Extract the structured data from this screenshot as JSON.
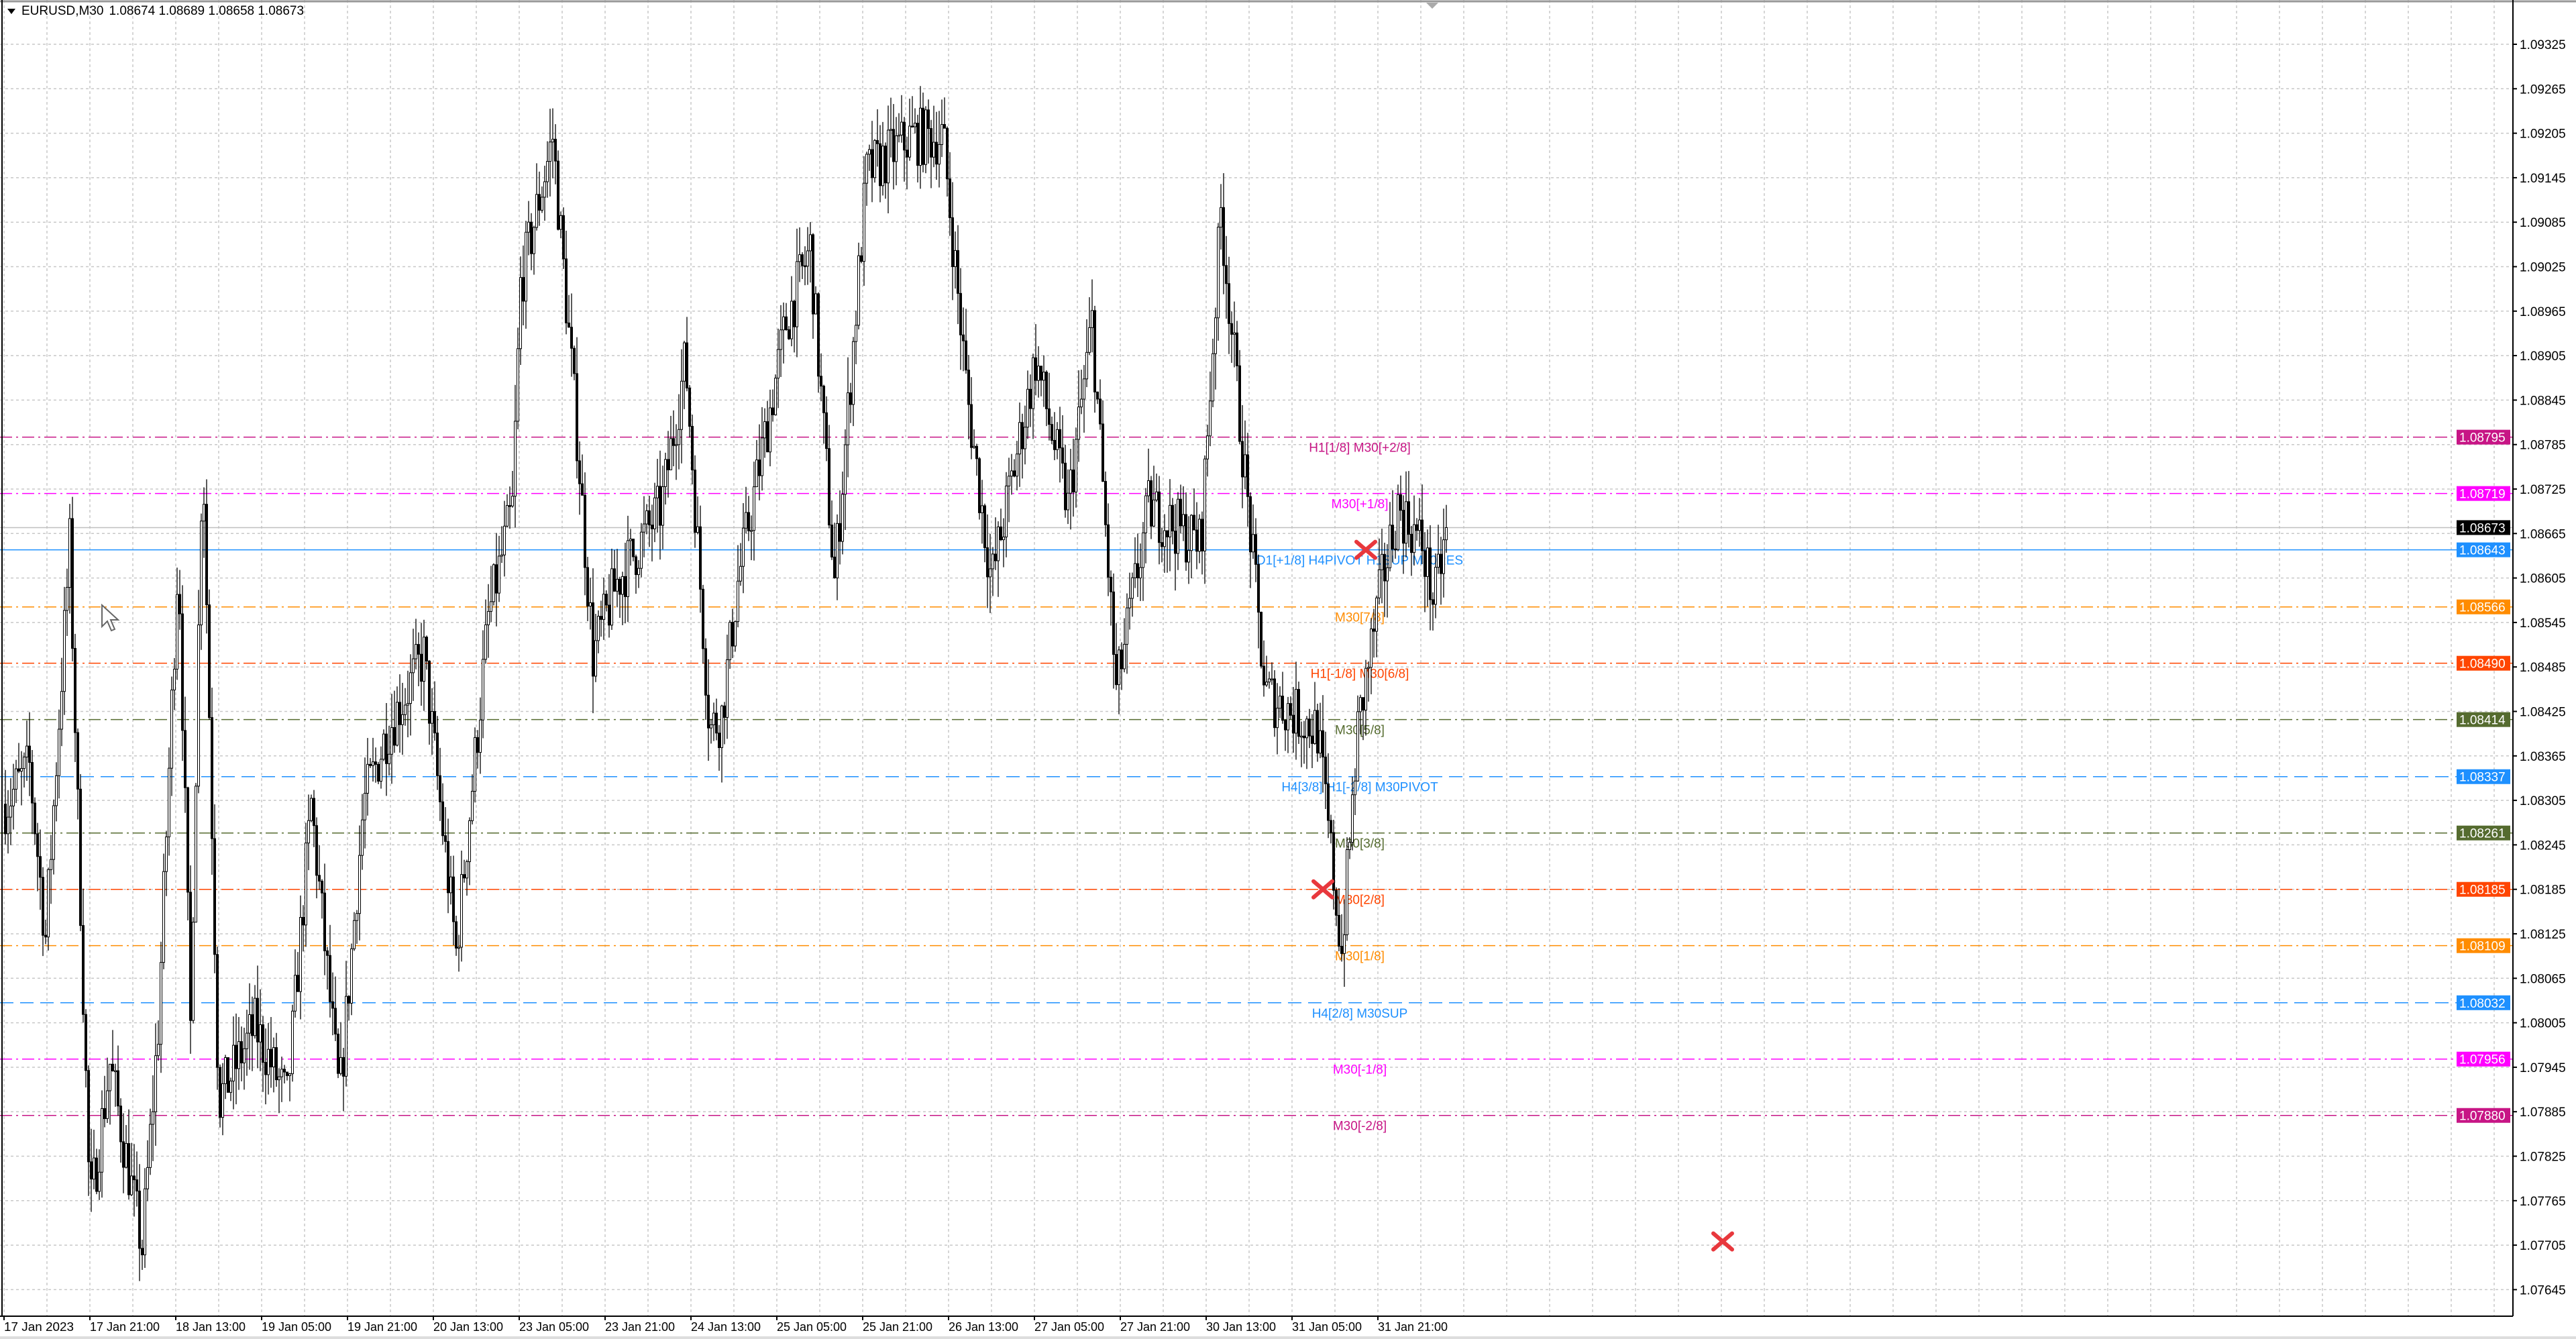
{
  "header": {
    "symbol": "EURUSD,M30",
    "ohlc": "1.08674 1.08689 1.08658 1.08673",
    "menu_icon": "triangle-down-icon"
  },
  "price_axis": {
    "ticks": [
      "1.09325",
      "1.09265",
      "1.09205",
      "1.09145",
      "1.09085",
      "1.09025",
      "1.08965",
      "1.08905",
      "1.08845",
      "1.08785",
      "1.08725",
      "1.08665",
      "1.08605",
      "1.08545",
      "1.08485",
      "1.08425",
      "1.08365",
      "1.08305",
      "1.08245",
      "1.08185",
      "1.08125",
      "1.08065",
      "1.08005",
      "1.07945",
      "1.07885",
      "1.07825",
      "1.07765",
      "1.07705",
      "1.07645"
    ],
    "current_price": {
      "value": "1.08673",
      "color": "#000000"
    }
  },
  "time_axis": {
    "ticks": [
      "17 Jan 2023",
      "17 Jan 21:00",
      "18 Jan 13:00",
      "19 Jan 05:00",
      "19 Jan 21:00",
      "20 Jan 13:00",
      "23 Jan 05:00",
      "23 Jan 21:00",
      "24 Jan 13:00",
      "25 Jan 05:00",
      "25 Jan 21:00",
      "26 Jan 13:00",
      "27 Jan 05:00",
      "27 Jan 21:00",
      "30 Jan 13:00",
      "31 Jan 05:00",
      "31 Jan 21:00"
    ]
  },
  "levels": [
    {
      "price": "1.08795",
      "label": "H1[1/8] M30[+2/8]",
      "color": "#C71585",
      "style": "dashdot"
    },
    {
      "price": "1.08719",
      "label": "M30[+1/8]",
      "color": "#FF00FF",
      "style": "dashdot"
    },
    {
      "price": "1.08643",
      "label": "D1[+1/8] H4PIVOT H1SUP M30RES",
      "color": "#1E90FF",
      "style": "solid"
    },
    {
      "price": "1.08566",
      "label": "M30[7/8]",
      "color": "#FF8C00",
      "style": "dashdot"
    },
    {
      "price": "1.08490",
      "label": "H1[-1/8] M30[6/8]",
      "color": "#FF4500",
      "style": "dashdot"
    },
    {
      "price": "1.08414",
      "label": "M30[5/8]",
      "color": "#556B2F",
      "style": "dashdot"
    },
    {
      "price": "1.08337",
      "label": "H4[3/8] H1[-2/8] M30PIVOT",
      "color": "#1E90FF",
      "style": "dashed"
    },
    {
      "price": "1.08261",
      "label": "M30[3/8]",
      "color": "#556B2F",
      "style": "dashdot"
    },
    {
      "price": "1.08185",
      "label": "M30[2/8]",
      "color": "#FF4500",
      "style": "dashdot"
    },
    {
      "price": "1.08109",
      "label": "M30[1/8]",
      "color": "#FF8C00",
      "style": "dashdot"
    },
    {
      "price": "1.08032",
      "label": "H4[2/8] M30SUP",
      "color": "#1E90FF",
      "style": "dashed"
    },
    {
      "price": "1.07956",
      "label": "M30[-1/8]",
      "color": "#FF00FF",
      "style": "dashdot"
    },
    {
      "price": "1.07880",
      "label": "M30[-2/8]",
      "color": "#C71585",
      "style": "dashdot"
    }
  ],
  "markers": [
    {
      "icon": "cross-icon",
      "color": "#E8383D",
      "time_index": 507,
      "price": 1.08643
    },
    {
      "icon": "cross-icon",
      "color": "#E8383D",
      "time_index": 491,
      "price": 1.08185
    },
    {
      "icon": "cross-icon",
      "color": "#E8383D",
      "time_index": 640,
      "price": 1.0771
    }
  ],
  "chart_data": {
    "type": "candlestick",
    "symbol": "EURUSD",
    "timeframe": "M30",
    "ylim": [
      1.0762,
      1.0937
    ],
    "grid": true,
    "approx_path": [
      [
        0,
        1.083
      ],
      [
        6,
        1.0835
      ],
      [
        10,
        1.0812
      ],
      [
        16,
        1.0865
      ],
      [
        21,
        1.0775
      ],
      [
        26,
        1.0795
      ],
      [
        34,
        1.077
      ],
      [
        38,
        1.08
      ],
      [
        43,
        1.0865
      ],
      [
        46,
        1.08
      ],
      [
        49,
        1.088
      ],
      [
        53,
        1.079
      ],
      [
        62,
        1.08
      ],
      [
        70,
        1.079
      ],
      [
        76,
        1.083
      ],
      [
        83,
        1.079
      ],
      [
        89,
        1.083
      ],
      [
        95,
        1.084
      ],
      [
        104,
        1.085
      ],
      [
        112,
        1.081
      ],
      [
        120,
        1.0855
      ],
      [
        126,
        1.087
      ],
      [
        128,
        1.09
      ],
      [
        136,
        1.092
      ],
      [
        142,
        1.088
      ],
      [
        146,
        1.085
      ],
      [
        152,
        1.086
      ],
      [
        163,
        1.087
      ],
      [
        169,
        1.089
      ],
      [
        175,
        1.084
      ],
      [
        178,
        1.0842
      ],
      [
        182,
        1.086
      ],
      [
        194,
        1.0895
      ],
      [
        200,
        1.0905
      ],
      [
        206,
        1.086
      ],
      [
        214,
        1.0915
      ],
      [
        225,
        1.092
      ],
      [
        233,
        1.092
      ],
      [
        239,
        1.0885
      ],
      [
        245,
        1.086
      ],
      [
        256,
        1.089
      ],
      [
        264,
        1.087
      ],
      [
        270,
        1.0895
      ],
      [
        276,
        1.0845
      ],
      [
        284,
        1.087
      ],
      [
        297,
        1.0865
      ],
      [
        302,
        1.091
      ],
      [
        307,
        1.088
      ],
      [
        313,
        1.0845
      ],
      [
        326,
        1.084
      ],
      [
        332,
        1.081
      ],
      [
        336,
        1.084
      ],
      [
        342,
        1.086
      ],
      [
        346,
        1.087
      ],
      [
        352,
        1.0865
      ],
      [
        355,
        1.0857
      ],
      [
        358,
        1.0867
      ]
    ]
  }
}
